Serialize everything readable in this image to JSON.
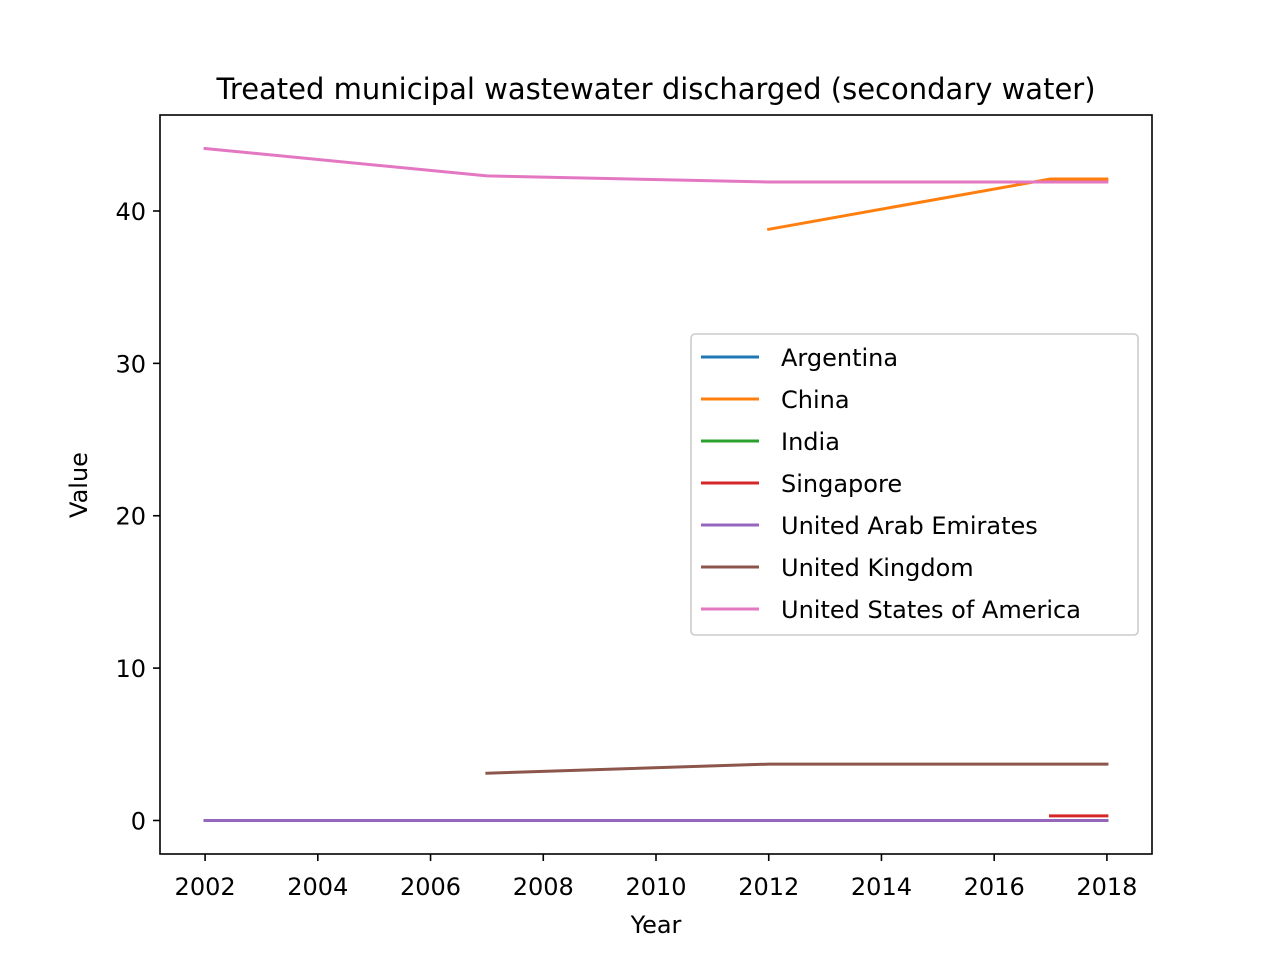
{
  "chart_data": {
    "type": "line",
    "title": "Treated municipal wastewater discharged (secondary water)",
    "xlabel": "Year",
    "ylabel": "Value",
    "xlim": [
      2001.2,
      2018.8
    ],
    "ylim": [
      -2.2,
      46.3
    ],
    "xticks": [
      2002,
      2004,
      2006,
      2008,
      2010,
      2012,
      2014,
      2016,
      2018
    ],
    "yticks": [
      0,
      10,
      20,
      30,
      40
    ],
    "grid": false,
    "legend_position": "center-right",
    "series": [
      {
        "name": "Argentina",
        "color": "#1f77b4",
        "points": [
          [
            2002,
            0.0
          ],
          [
            2007,
            0.0
          ],
          [
            2012,
            0.0
          ],
          [
            2017,
            0.0
          ],
          [
            2018,
            0.0
          ]
        ]
      },
      {
        "name": "China",
        "color": "#ff7f0e",
        "points": [
          [
            2012,
            38.8
          ],
          [
            2017,
            42.1
          ],
          [
            2018,
            42.1
          ]
        ]
      },
      {
        "name": "India",
        "color": "#2ca02c",
        "points": [
          [
            2002,
            0.0
          ],
          [
            2007,
            0.0
          ],
          [
            2012,
            0.0
          ],
          [
            2017,
            0.0
          ],
          [
            2018,
            0.0
          ]
        ]
      },
      {
        "name": "Singapore",
        "color": "#d62728",
        "points": [
          [
            2017,
            0.3
          ],
          [
            2018,
            0.3
          ]
        ]
      },
      {
        "name": "United Arab Emirates",
        "color": "#9467bd",
        "points": [
          [
            2002,
            0.0
          ],
          [
            2007,
            0.0
          ],
          [
            2012,
            0.0
          ],
          [
            2017,
            0.0
          ],
          [
            2018,
            0.0
          ]
        ]
      },
      {
        "name": "United Kingdom",
        "color": "#8c564b",
        "points": [
          [
            2007,
            3.1
          ],
          [
            2012,
            3.7
          ],
          [
            2017,
            3.7
          ],
          [
            2018,
            3.7
          ]
        ]
      },
      {
        "name": "United States of America",
        "color": "#e377c2",
        "points": [
          [
            2002,
            44.1
          ],
          [
            2007,
            42.3
          ],
          [
            2012,
            41.9
          ],
          [
            2017,
            41.9
          ],
          [
            2018,
            41.9
          ]
        ]
      }
    ]
  }
}
